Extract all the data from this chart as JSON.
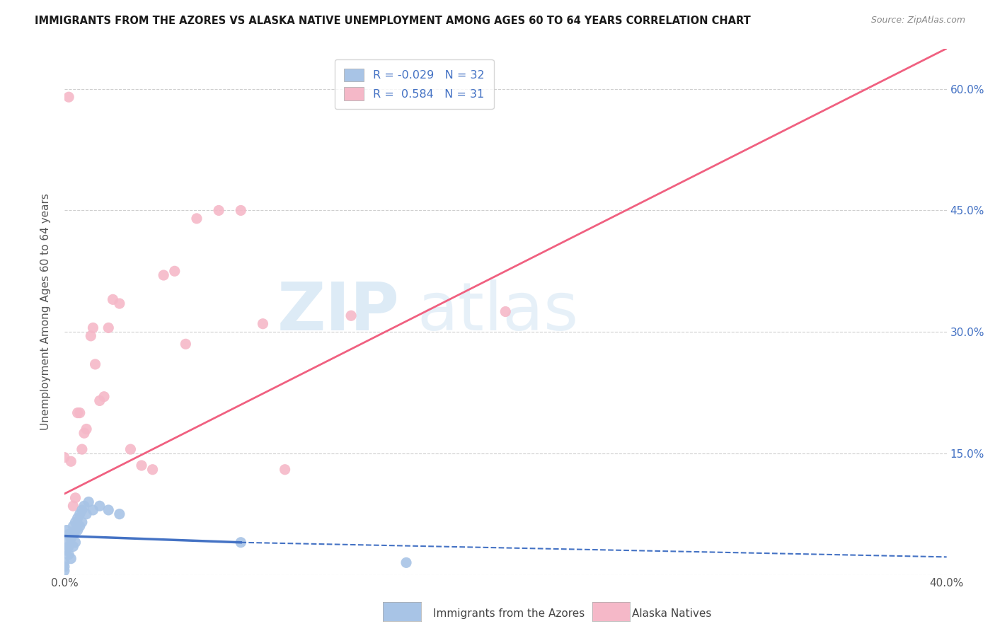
{
  "title": "IMMIGRANTS FROM THE AZORES VS ALASKA NATIVE UNEMPLOYMENT AMONG AGES 60 TO 64 YEARS CORRELATION CHART",
  "source": "Source: ZipAtlas.com",
  "ylabel": "Unemployment Among Ages 60 to 64 years",
  "xlim": [
    0,
    0.4
  ],
  "ylim": [
    0,
    0.65
  ],
  "x_tick_positions": [
    0.0,
    0.05,
    0.1,
    0.15,
    0.2,
    0.25,
    0.3,
    0.35,
    0.4
  ],
  "x_tick_labels": [
    "0.0%",
    "",
    "",
    "",
    "",
    "",
    "",
    "",
    "40.0%"
  ],
  "y_tick_positions": [
    0.0,
    0.15,
    0.3,
    0.45,
    0.6
  ],
  "y_tick_labels_right": [
    "",
    "15.0%",
    "30.0%",
    "45.0%",
    "60.0%"
  ],
  "legend_r_blue": "-0.029",
  "legend_n_blue": "32",
  "legend_r_pink": "0.584",
  "legend_n_pink": "31",
  "blue_scatter_color": "#a8c4e6",
  "pink_scatter_color": "#f5b8c8",
  "blue_line_color": "#4472c4",
  "pink_line_color": "#f06080",
  "right_axis_color": "#4472c4",
  "grid_color": "#d0d0d0",
  "watermark_color": "#cfe3f3",
  "blue_scatter_x": [
    0.0,
    0.0,
    0.0,
    0.001,
    0.001,
    0.001,
    0.002,
    0.002,
    0.002,
    0.003,
    0.003,
    0.004,
    0.004,
    0.004,
    0.005,
    0.005,
    0.005,
    0.006,
    0.006,
    0.007,
    0.007,
    0.008,
    0.008,
    0.009,
    0.01,
    0.011,
    0.013,
    0.016,
    0.02,
    0.025,
    0.08,
    0.155
  ],
  "blue_scatter_y": [
    0.005,
    0.01,
    0.015,
    0.03,
    0.04,
    0.055,
    0.025,
    0.035,
    0.05,
    0.02,
    0.045,
    0.035,
    0.05,
    0.06,
    0.04,
    0.055,
    0.065,
    0.055,
    0.07,
    0.06,
    0.075,
    0.065,
    0.08,
    0.085,
    0.075,
    0.09,
    0.08,
    0.085,
    0.08,
    0.075,
    0.04,
    0.015
  ],
  "pink_scatter_x": [
    0.002,
    0.003,
    0.004,
    0.005,
    0.006,
    0.007,
    0.008,
    0.009,
    0.01,
    0.012,
    0.013,
    0.014,
    0.016,
    0.018,
    0.02,
    0.022,
    0.025,
    0.03,
    0.035,
    0.04,
    0.045,
    0.05,
    0.055,
    0.06,
    0.07,
    0.08,
    0.09,
    0.1,
    0.13,
    0.2,
    0.0
  ],
  "pink_scatter_y": [
    0.59,
    0.14,
    0.085,
    0.095,
    0.2,
    0.2,
    0.155,
    0.175,
    0.18,
    0.295,
    0.305,
    0.26,
    0.215,
    0.22,
    0.305,
    0.34,
    0.335,
    0.155,
    0.135,
    0.13,
    0.37,
    0.375,
    0.285,
    0.44,
    0.45,
    0.45,
    0.31,
    0.13,
    0.32,
    0.325,
    0.145
  ],
  "pink_line_x0": 0.0,
  "pink_line_y0": 0.1,
  "pink_line_x1": 0.4,
  "pink_line_y1": 0.65,
  "blue_line_solid_x0": 0.0,
  "blue_line_solid_y0": 0.048,
  "blue_line_solid_x1": 0.08,
  "blue_line_solid_y1": 0.04,
  "blue_line_dash_x0": 0.08,
  "blue_line_dash_y0": 0.04,
  "blue_line_dash_x1": 0.4,
  "blue_line_dash_y1": 0.022
}
